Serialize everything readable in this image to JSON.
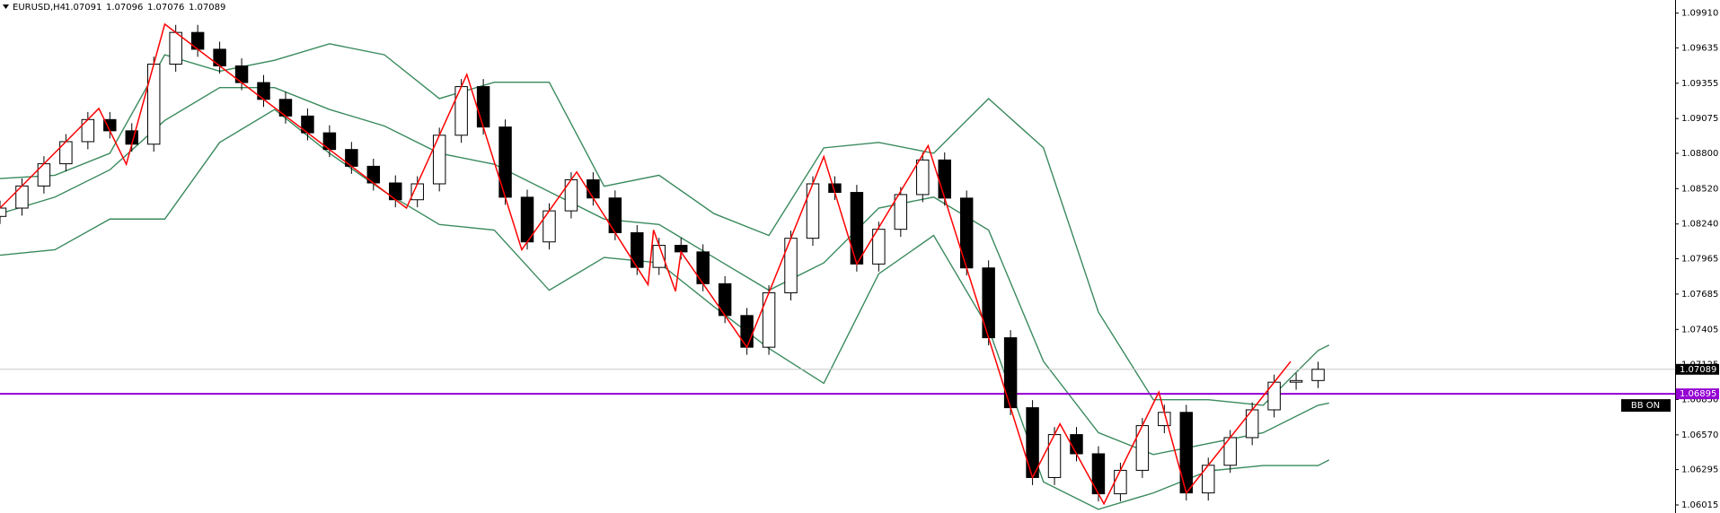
{
  "chart_data": {
    "type": "candlestick",
    "title": "EURUSD,H4",
    "header_values": [
      1.07091,
      1.07096,
      1.07076,
      1.07089
    ],
    "xlim": [
      0,
      305
    ],
    "ylim": [
      1.05951,
      1.10014
    ],
    "yticks": [
      {
        "value": 1.0991,
        "label": "1.09910"
      },
      1.09635,
      1.09355,
      1.09075,
      {
        "value": 1.088,
        "label": "1.08800"
      },
      {
        "value": 1.0852,
        "label": "1.08520"
      },
      {
        "value": 1.0824,
        "label": "1.08240"
      },
      1.07965,
      1.07685,
      1.07405,
      1.07125,
      {
        "value": 1.0685,
        "label": "1.06850"
      },
      {
        "value": 1.0657,
        "label": "1.06570"
      },
      1.06295,
      1.06015
    ],
    "up_color": "#ffffff",
    "down_color": "#000000",
    "x": [
      0,
      4,
      8,
      12,
      16,
      20,
      24,
      28,
      32,
      36,
      40,
      44,
      48,
      52,
      56,
      60,
      64,
      68,
      72,
      76,
      80,
      84,
      88,
      92,
      96,
      100,
      104,
      108,
      112,
      116,
      120,
      124,
      128,
      132,
      136,
      140,
      144,
      148,
      152,
      156,
      160,
      164,
      168,
      172,
      176,
      180,
      184,
      188,
      192,
      196,
      200,
      204,
      208,
      212,
      216,
      220,
      224,
      228,
      232,
      236,
      240
    ],
    "open": [
      1.083,
      1.08366,
      1.08541,
      1.08717,
      1.08892,
      1.09067,
      1.08978,
      1.08872,
      1.09506,
      1.09757,
      1.09624,
      1.09492,
      1.0936,
      1.09227,
      1.09095,
      1.08962,
      1.0883,
      1.08697,
      1.08565,
      1.08432,
      1.08558,
      1.08943,
      1.09328,
      1.09008,
      1.08452,
      1.08098,
      1.08344,
      1.0859,
      1.08446,
      1.08171,
      1.07896,
      1.08071,
      1.08019,
      1.07767,
      1.07515,
      1.07264,
      1.07695,
      1.08127,
      1.08558,
      1.0849,
      1.07923,
      1.08198,
      1.08473,
      1.08747,
      1.08445,
      1.07892,
      1.07339,
      1.06785,
      1.06232,
      1.06572,
      1.0642,
      1.06103,
      1.06289,
      1.06643,
      1.06748,
      1.0611,
      1.06329,
      1.06548,
      1.06768,
      1.06987,
      1.07
    ],
    "high": [
      1.08426,
      1.08601,
      1.08777,
      1.08952,
      1.09127,
      1.09127,
      1.09038,
      1.09566,
      1.09817,
      1.09817,
      1.09684,
      1.09552,
      1.0942,
      1.09287,
      1.09155,
      1.09022,
      1.0889,
      1.08757,
      1.08625,
      1.08618,
      1.09003,
      1.09388,
      1.09388,
      1.09068,
      1.08512,
      1.08404,
      1.0865,
      1.0865,
      1.08506,
      1.08231,
      1.08131,
      1.08131,
      1.08079,
      1.07827,
      1.07575,
      1.07755,
      1.08187,
      1.08618,
      1.08618,
      1.0855,
      1.08258,
      1.08533,
      1.08807,
      1.08807,
      1.08505,
      1.07952,
      1.07399,
      1.06845,
      1.06632,
      1.06632,
      1.0648,
      1.06349,
      1.06703,
      1.06808,
      1.06808,
      1.06389,
      1.06608,
      1.06828,
      1.07047,
      1.0706,
      1.07149
    ],
    "low": [
      1.0824,
      1.08306,
      1.08481,
      1.08657,
      1.08832,
      1.08918,
      1.08812,
      1.08812,
      1.09446,
      1.09564,
      1.09432,
      1.093,
      1.09167,
      1.09035,
      1.08902,
      1.0877,
      1.08637,
      1.08505,
      1.08372,
      1.08372,
      1.08498,
      1.08883,
      1.08948,
      1.08392,
      1.08038,
      1.08038,
      1.08284,
      1.08386,
      1.08111,
      1.07836,
      1.07836,
      1.07959,
      1.07707,
      1.07455,
      1.07204,
      1.07204,
      1.07635,
      1.08067,
      1.0843,
      1.07863,
      1.07863,
      1.08138,
      1.08413,
      1.08385,
      1.07832,
      1.07279,
      1.06725,
      1.06172,
      1.06172,
      1.0636,
      1.06043,
      1.06043,
      1.06229,
      1.06583,
      1.0605,
      1.0605,
      1.06269,
      1.06488,
      1.06708,
      1.06927,
      1.0694
    ],
    "close": [
      1.08366,
      1.08541,
      1.08717,
      1.08892,
      1.09067,
      1.08978,
      1.08872,
      1.09506,
      1.09757,
      1.09624,
      1.09492,
      1.0936,
      1.09227,
      1.09095,
      1.08962,
      1.0883,
      1.08697,
      1.08565,
      1.08432,
      1.08558,
      1.08943,
      1.09328,
      1.09008,
      1.08452,
      1.08098,
      1.08344,
      1.0859,
      1.08446,
      1.08171,
      1.07896,
      1.08071,
      1.08019,
      1.07767,
      1.07515,
      1.07264,
      1.07695,
      1.08127,
      1.08558,
      1.0849,
      1.07923,
      1.08198,
      1.08473,
      1.08747,
      1.08445,
      1.07892,
      1.07339,
      1.06785,
      1.06232,
      1.06572,
      1.0642,
      1.06103,
      1.06289,
      1.06643,
      1.06748,
      1.0611,
      1.06329,
      1.06548,
      1.06768,
      1.06987,
      1.07,
      1.07089
    ],
    "bands": {
      "color": "#3a8a5e",
      "x": [
        0,
        10,
        20,
        30,
        40,
        50,
        60,
        70,
        80,
        90,
        100,
        110,
        120,
        130,
        140,
        150,
        160,
        170,
        180,
        190,
        200,
        210,
        220,
        230,
        240,
        242
      ],
      "upper": [
        1.086,
        1.08626,
        1.088,
        1.0958,
        1.0945,
        1.09537,
        1.09667,
        1.0958,
        1.09233,
        1.09363,
        1.09363,
        1.08539,
        1.08626,
        1.08322,
        1.08149,
        1.08843,
        1.08886,
        1.088,
        1.09233,
        1.08843,
        1.07542,
        1.06848,
        1.06848,
        1.06804,
        1.07238,
        1.07281
      ],
      "middle": [
        1.08322,
        1.08453,
        1.08669,
        1.0906,
        1.0932,
        1.0932,
        1.09147,
        1.09016,
        1.088,
        1.08713,
        1.08496,
        1.08279,
        1.08236,
        1.07975,
        1.07715,
        1.07932,
        1.08366,
        1.08453,
        1.08192,
        1.07151,
        1.06587,
        1.06414,
        1.06501,
        1.06587,
        1.06804,
        1.06822
      ],
      "lower": [
        1.07993,
        1.08036,
        1.08279,
        1.08279,
        1.08886,
        1.09147,
        1.088,
        1.08496,
        1.08236,
        1.08192,
        1.07715,
        1.07975,
        1.07932,
        1.07585,
        1.07255,
        1.06978,
        1.07845,
        1.08149,
        1.07412,
        1.06197,
        1.0598,
        1.0611,
        1.06284,
        1.06327,
        1.06327,
        1.06371
      ]
    },
    "zigzag": {
      "color": "#ff0000",
      "x": [
        0,
        18,
        23,
        30,
        74,
        85,
        95,
        105,
        118,
        119,
        123,
        124,
        136,
        150,
        156,
        169,
        188,
        193,
        201,
        211,
        216,
        235
      ],
      "values": [
        1.08366,
        1.09155,
        1.08713,
        1.09823,
        1.08366,
        1.09424,
        1.08036,
        1.08652,
        1.07759,
        1.08192,
        1.07707,
        1.08019,
        1.07264,
        1.08774,
        1.07923,
        1.0886,
        1.06232,
        1.06657,
        1.06024,
        1.06908,
        1.0611,
        1.07151
      ]
    },
    "price_lines": [
      {
        "value": 1.07089,
        "color": "#c8c8c8",
        "label_color": "#000000"
      },
      {
        "value": 1.06895,
        "color": "#9400d3",
        "label_color": "#9400d3"
      }
    ],
    "button": "BB ON"
  }
}
